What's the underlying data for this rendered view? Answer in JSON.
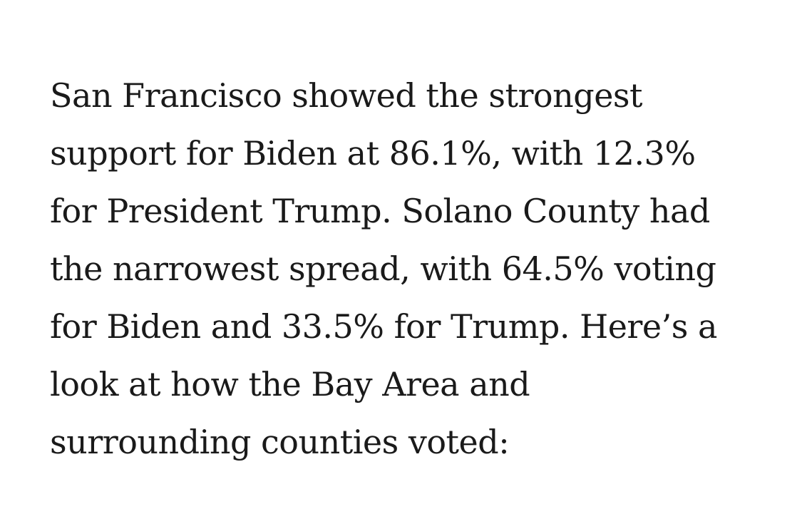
{
  "article": {
    "paragraph": {
      "lines": [
        "San Francisco showed the strongest",
        "support for Biden at 86.1%, with 12.3%",
        "for President Trump. Solano County had",
        "the narrowest spread, with 64.5% voting",
        "for Biden and 33.5% for Trump. Here’s a",
        "look at how the Bay Area and",
        "surrounding counties voted:"
      ]
    }
  }
}
